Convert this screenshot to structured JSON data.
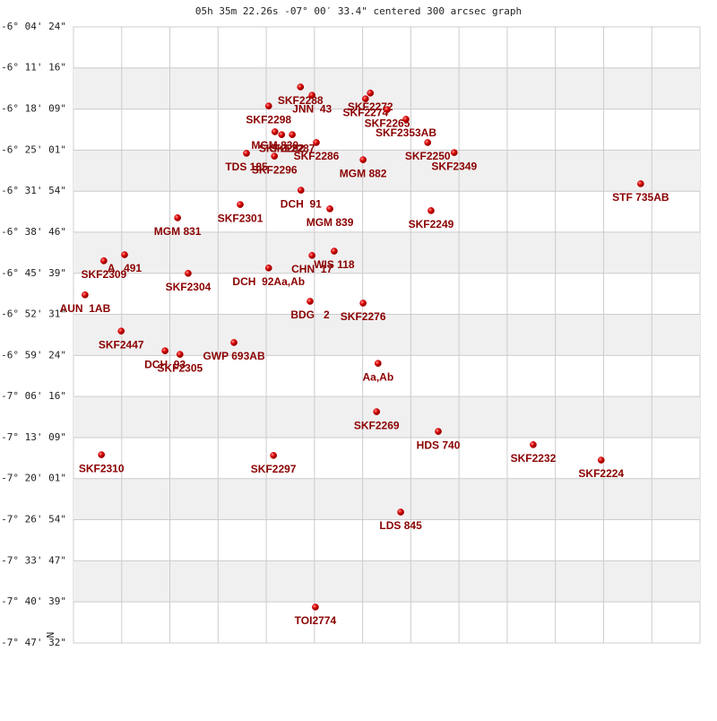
{
  "chart_data": {
    "type": "scatter",
    "title": "05h 35m 22.26s -07° 00′ 33.4\" centered 300 arcsec graph",
    "north_label": "N",
    "labels": [
      "SKF2288",
      "JNN  43",
      "SKF2272",
      "SKF2274",
      "SKF2298",
      "SKF2265",
      "SKF2353AB",
      "MGM 830",
      "SKF2292",
      "SKF2287",
      "SKF2286",
      "TDS 185",
      "SKF2296",
      "SKF2250",
      "SKF2349",
      "MGM 882",
      "STF 735AB",
      "DCH  91",
      "SKF2301",
      "MGM 839",
      "SKF2249",
      "MGM 831",
      "A   491",
      "SKF2309",
      "WIS 118",
      "CHN  17",
      "DCH  92Aa,Ab",
      "SKF2304",
      "AUN  1AB",
      "BDG   2",
      "SKF2276",
      "SKF2447",
      "GWP 693AB",
      "DCH  93",
      "SKF2305",
      "Aa,Ab",
      "SKF2269",
      "HDS 740",
      "SKF2232",
      "SKF2310",
      "SKF2297",
      "SKF2224",
      "LDS 845",
      "TOI2774"
    ],
    "x": [
      4.71,
      4.95,
      6.16,
      6.06,
      4.05,
      6.51,
      6.9,
      4.18,
      4.32,
      4.54,
      5.04,
      3.59,
      4.17,
      7.35,
      7.9,
      6.01,
      11.77,
      4.72,
      3.46,
      5.32,
      7.42,
      2.16,
      1.06,
      0.63,
      5.41,
      4.95,
      4.05,
      2.38,
      0.24,
      4.91,
      6.01,
      0.99,
      3.33,
      1.9,
      2.21,
      6.32,
      6.29,
      7.57,
      9.54,
      0.58,
      4.15,
      10.95,
      6.79,
      5.02
    ],
    "y": [
      -6.241,
      -6.264,
      -6.258,
      -6.274,
      -6.294,
      -6.304,
      -6.331,
      -6.366,
      -6.374,
      -6.374,
      -6.396,
      -6.426,
      -6.434,
      -6.396,
      -6.424,
      -6.444,
      -6.511,
      -6.529,
      -6.569,
      -6.581,
      -6.586,
      -6.606,
      -6.709,
      -6.726,
      -6.699,
      -6.711,
      -6.746,
      -6.761,
      -6.821,
      -6.839,
      -6.844,
      -6.922,
      -6.954,
      -6.977,
      -6.987,
      -7.012,
      -7.147,
      -7.202,
      -7.239,
      -7.267,
      -7.269,
      -7.282,
      -7.427,
      -7.692
    ],
    "xlim": [
      0,
      13
    ],
    "ylim": [
      -7.79222,
      -6.07333
    ],
    "yticks": [
      {
        "value": -6.07333,
        "label": "-6° 04' 24\""
      },
      {
        "value": -6.18778,
        "label": "-6° 11' 16\""
      },
      {
        "value": -6.3025,
        "label": "-6° 18' 09\""
      },
      {
        "value": -6.41694,
        "label": "-6° 25' 01\""
      },
      {
        "value": -6.53167,
        "label": "-6° 31' 54\""
      },
      {
        "value": -6.64611,
        "label": "-6° 38' 46\""
      },
      {
        "value": -6.76083,
        "label": "-6° 45' 39\""
      },
      {
        "value": -6.87528,
        "label": "-6° 52' 31\""
      },
      {
        "value": -6.99,
        "label": "-6° 59' 24\""
      },
      {
        "value": -7.10444,
        "label": "-7° 06' 16\""
      },
      {
        "value": -7.21917,
        "label": "-7° 13' 09\""
      },
      {
        "value": -7.33361,
        "label": "-7° 20' 01\""
      },
      {
        "value": -7.44833,
        "label": "-7° 26' 54\""
      },
      {
        "value": -7.56306,
        "label": "-7° 33' 47\""
      },
      {
        "value": -7.6775,
        "label": "-7° 40' 39\""
      },
      {
        "value": -7.79222,
        "label": "-7° 47' 32\""
      }
    ],
    "grid": true,
    "color": "#cc0000",
    "label_color": "#8b0000"
  }
}
